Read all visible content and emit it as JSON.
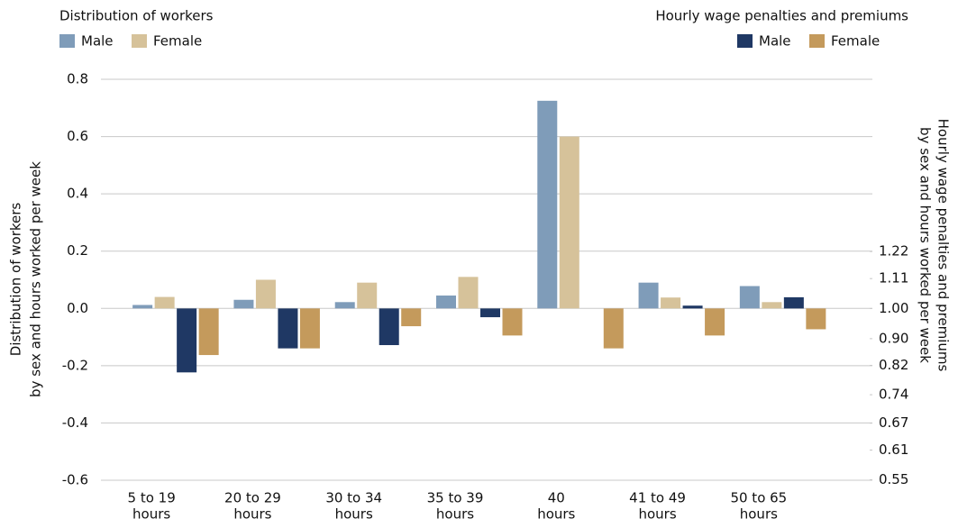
{
  "chart_data": {
    "type": "bar",
    "ylabel": [
      "Distribution of workers",
      "by sex and hours worked per week"
    ],
    "y2label": [
      "Hourly wage penalties and premiums",
      "by sex and hours worked per week"
    ],
    "legend_titles": [
      "Distribution of workers",
      "Hourly wage penalties and premiums"
    ],
    "categories": [
      [
        "5 to 19",
        "hours"
      ],
      [
        "20 to 29",
        "hours"
      ],
      [
        "30 to 34",
        "hours"
      ],
      [
        "35 to 39",
        "hours"
      ],
      [
        "40",
        "hours"
      ],
      [
        "41 to 49",
        "hours"
      ],
      [
        "50 to 65",
        "hours"
      ]
    ],
    "series": [
      {
        "name": "Male",
        "color": "#7f9cb9",
        "values": [
          0.012,
          0.03,
          0.022,
          0.045,
          0.725,
          0.09,
          0.078
        ]
      },
      {
        "name": "Female",
        "color": "#d6c29a",
        "values": [
          0.04,
          0.1,
          0.09,
          0.11,
          0.6,
          0.038,
          0.022
        ]
      },
      {
        "name": "Male",
        "color": "#1f3864",
        "axis": "y2",
        "values": [
          0.8,
          0.87,
          0.88,
          0.97,
          1,
          1.01,
          1.04
        ]
      },
      {
        "name": "Female",
        "color": "#c49a5c",
        "axis": "y2",
        "values": [
          0.85,
          0.87,
          0.94,
          0.91,
          0.87,
          0.91,
          0.93
        ]
      }
    ],
    "ylim": [
      -0.6,
      0.8
    ],
    "yticks": [
      -0.6,
      -0.4,
      -0.2,
      {
        "value": 0,
        "label": "0.0"
      },
      0.2,
      0.4,
      0.6,
      0.8
    ],
    "y2lim": [
      0.549,
      2.226
    ],
    "y2scale": "log",
    "y2ticks": [
      0.55,
      0.61,
      0.67,
      0.74,
      0.82,
      {
        "value": 0.9,
        "label": "0.90"
      },
      {
        "value": 1,
        "label": "1.00"
      },
      1.11,
      1.22
    ],
    "grid": true
  }
}
